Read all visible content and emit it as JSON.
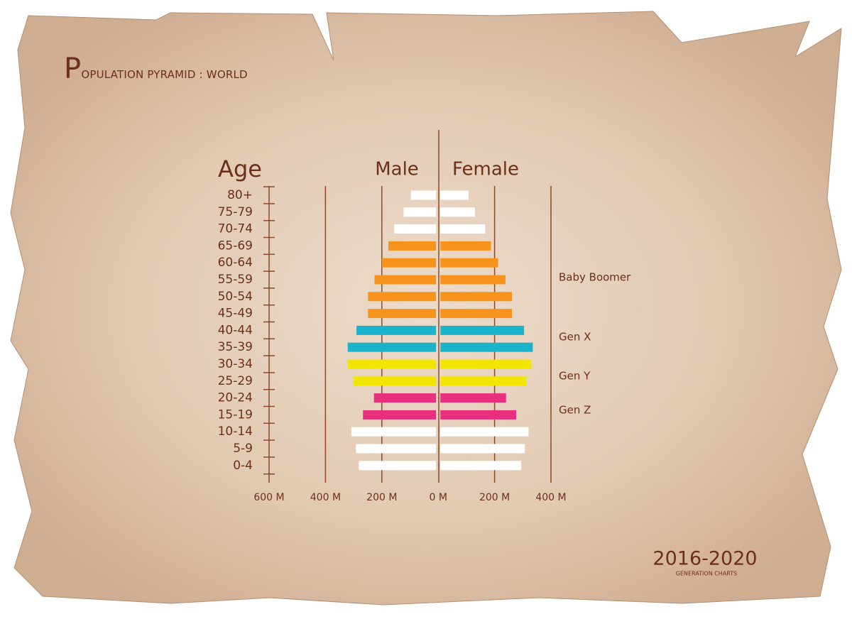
{
  "chart_data": {
    "type": "pyramid",
    "title": "Population Pyramid : World",
    "y_label": "Age",
    "categories": [
      "80+",
      "75-79",
      "70-74",
      "65-69",
      "60-64",
      "55-59",
      "50-54",
      "45-49",
      "40-44",
      "35-39",
      "30-34",
      "25-29",
      "20-24",
      "15-19",
      "10-14",
      "5-9",
      "0-4"
    ],
    "colors": [
      "#ffffff",
      "#ffffff",
      "#ffffff",
      "#f7941d",
      "#f7941d",
      "#f7941d",
      "#f7941d",
      "#f7941d",
      "#1ab3cc",
      "#1ab3cc",
      "#f2e600",
      "#f2e600",
      "#e9307f",
      "#e9307f",
      "#ffffff",
      "#ffffff",
      "#ffffff"
    ],
    "series": [
      {
        "name": "Male",
        "values": [
          97,
          123,
          156,
          177,
          200,
          226,
          249,
          249,
          290,
          321,
          321,
          300,
          228,
          267,
          308,
          292,
          282
        ]
      },
      {
        "name": "Female",
        "values": [
          100,
          123,
          159,
          180,
          205,
          231,
          254,
          254,
          297,
          328,
          323,
          305,
          233,
          269,
          313,
          300,
          287
        ]
      }
    ],
    "xlim": [
      -600,
      400
    ],
    "xticks": [
      {
        "value": -600,
        "label": "600 M"
      },
      {
        "value": -400,
        "label": "400 M"
      },
      {
        "value": -200,
        "label": "200 M"
      },
      {
        "value": 0,
        "label": "0 M"
      },
      {
        "value": 200,
        "label": "200 M"
      },
      {
        "value": 400,
        "label": "400 M"
      }
    ],
    "annotations": [
      "Baby Boomer",
      "Gen X",
      "Gen Y",
      "Gen Z"
    ],
    "period": "2016-2020",
    "subtitle": "GENERATION CHARTS"
  }
}
